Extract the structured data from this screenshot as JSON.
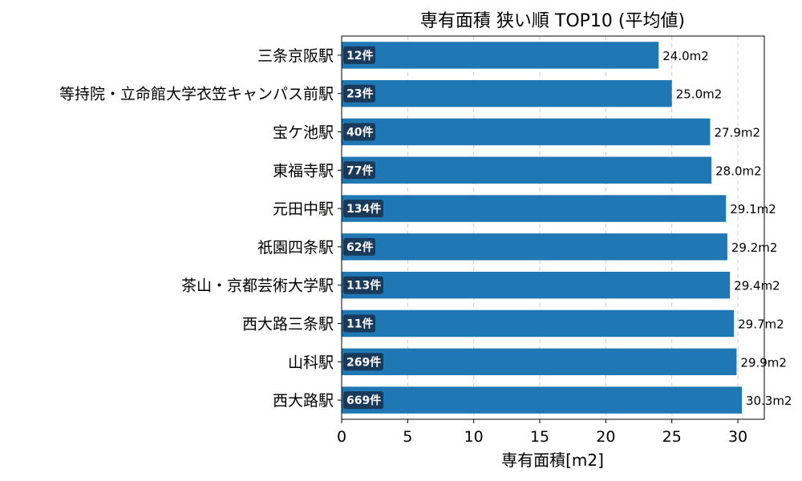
{
  "chart_data": {
    "type": "bar",
    "orientation": "horizontal",
    "title": "専有面積 狭い順 TOP10 (平均値)",
    "xlabel": "専有面積[m2]",
    "ylabel": "",
    "xlim": [
      0,
      32
    ],
    "xticks": [
      0,
      5,
      10,
      15,
      20,
      25,
      30
    ],
    "grid": "vertical-dashed",
    "bar_color": "#1f77b4",
    "badge_color": "#1a3a5c",
    "categories": [
      "三条京阪駅",
      "等持院・立命館大学衣笠キャンパス前駅",
      "宝ケ池駅",
      "東福寺駅",
      "元田中駅",
      "祇園四条駅",
      "茶山・京都芸術大学駅",
      "西大路三条駅",
      "山科駅",
      "西大路駅"
    ],
    "values": [
      24.0,
      25.0,
      27.9,
      28.0,
      29.1,
      29.2,
      29.4,
      29.7,
      29.9,
      30.3
    ],
    "value_labels": [
      "24.0m2",
      "25.0m2",
      "27.9m2",
      "28.0m2",
      "29.1m2",
      "29.2m2",
      "29.4m2",
      "29.7m2",
      "29.9m2",
      "30.3m2"
    ],
    "count_labels": [
      "12件",
      "23件",
      "40件",
      "77件",
      "134件",
      "62件",
      "113件",
      "11件",
      "269件",
      "669件"
    ]
  }
}
